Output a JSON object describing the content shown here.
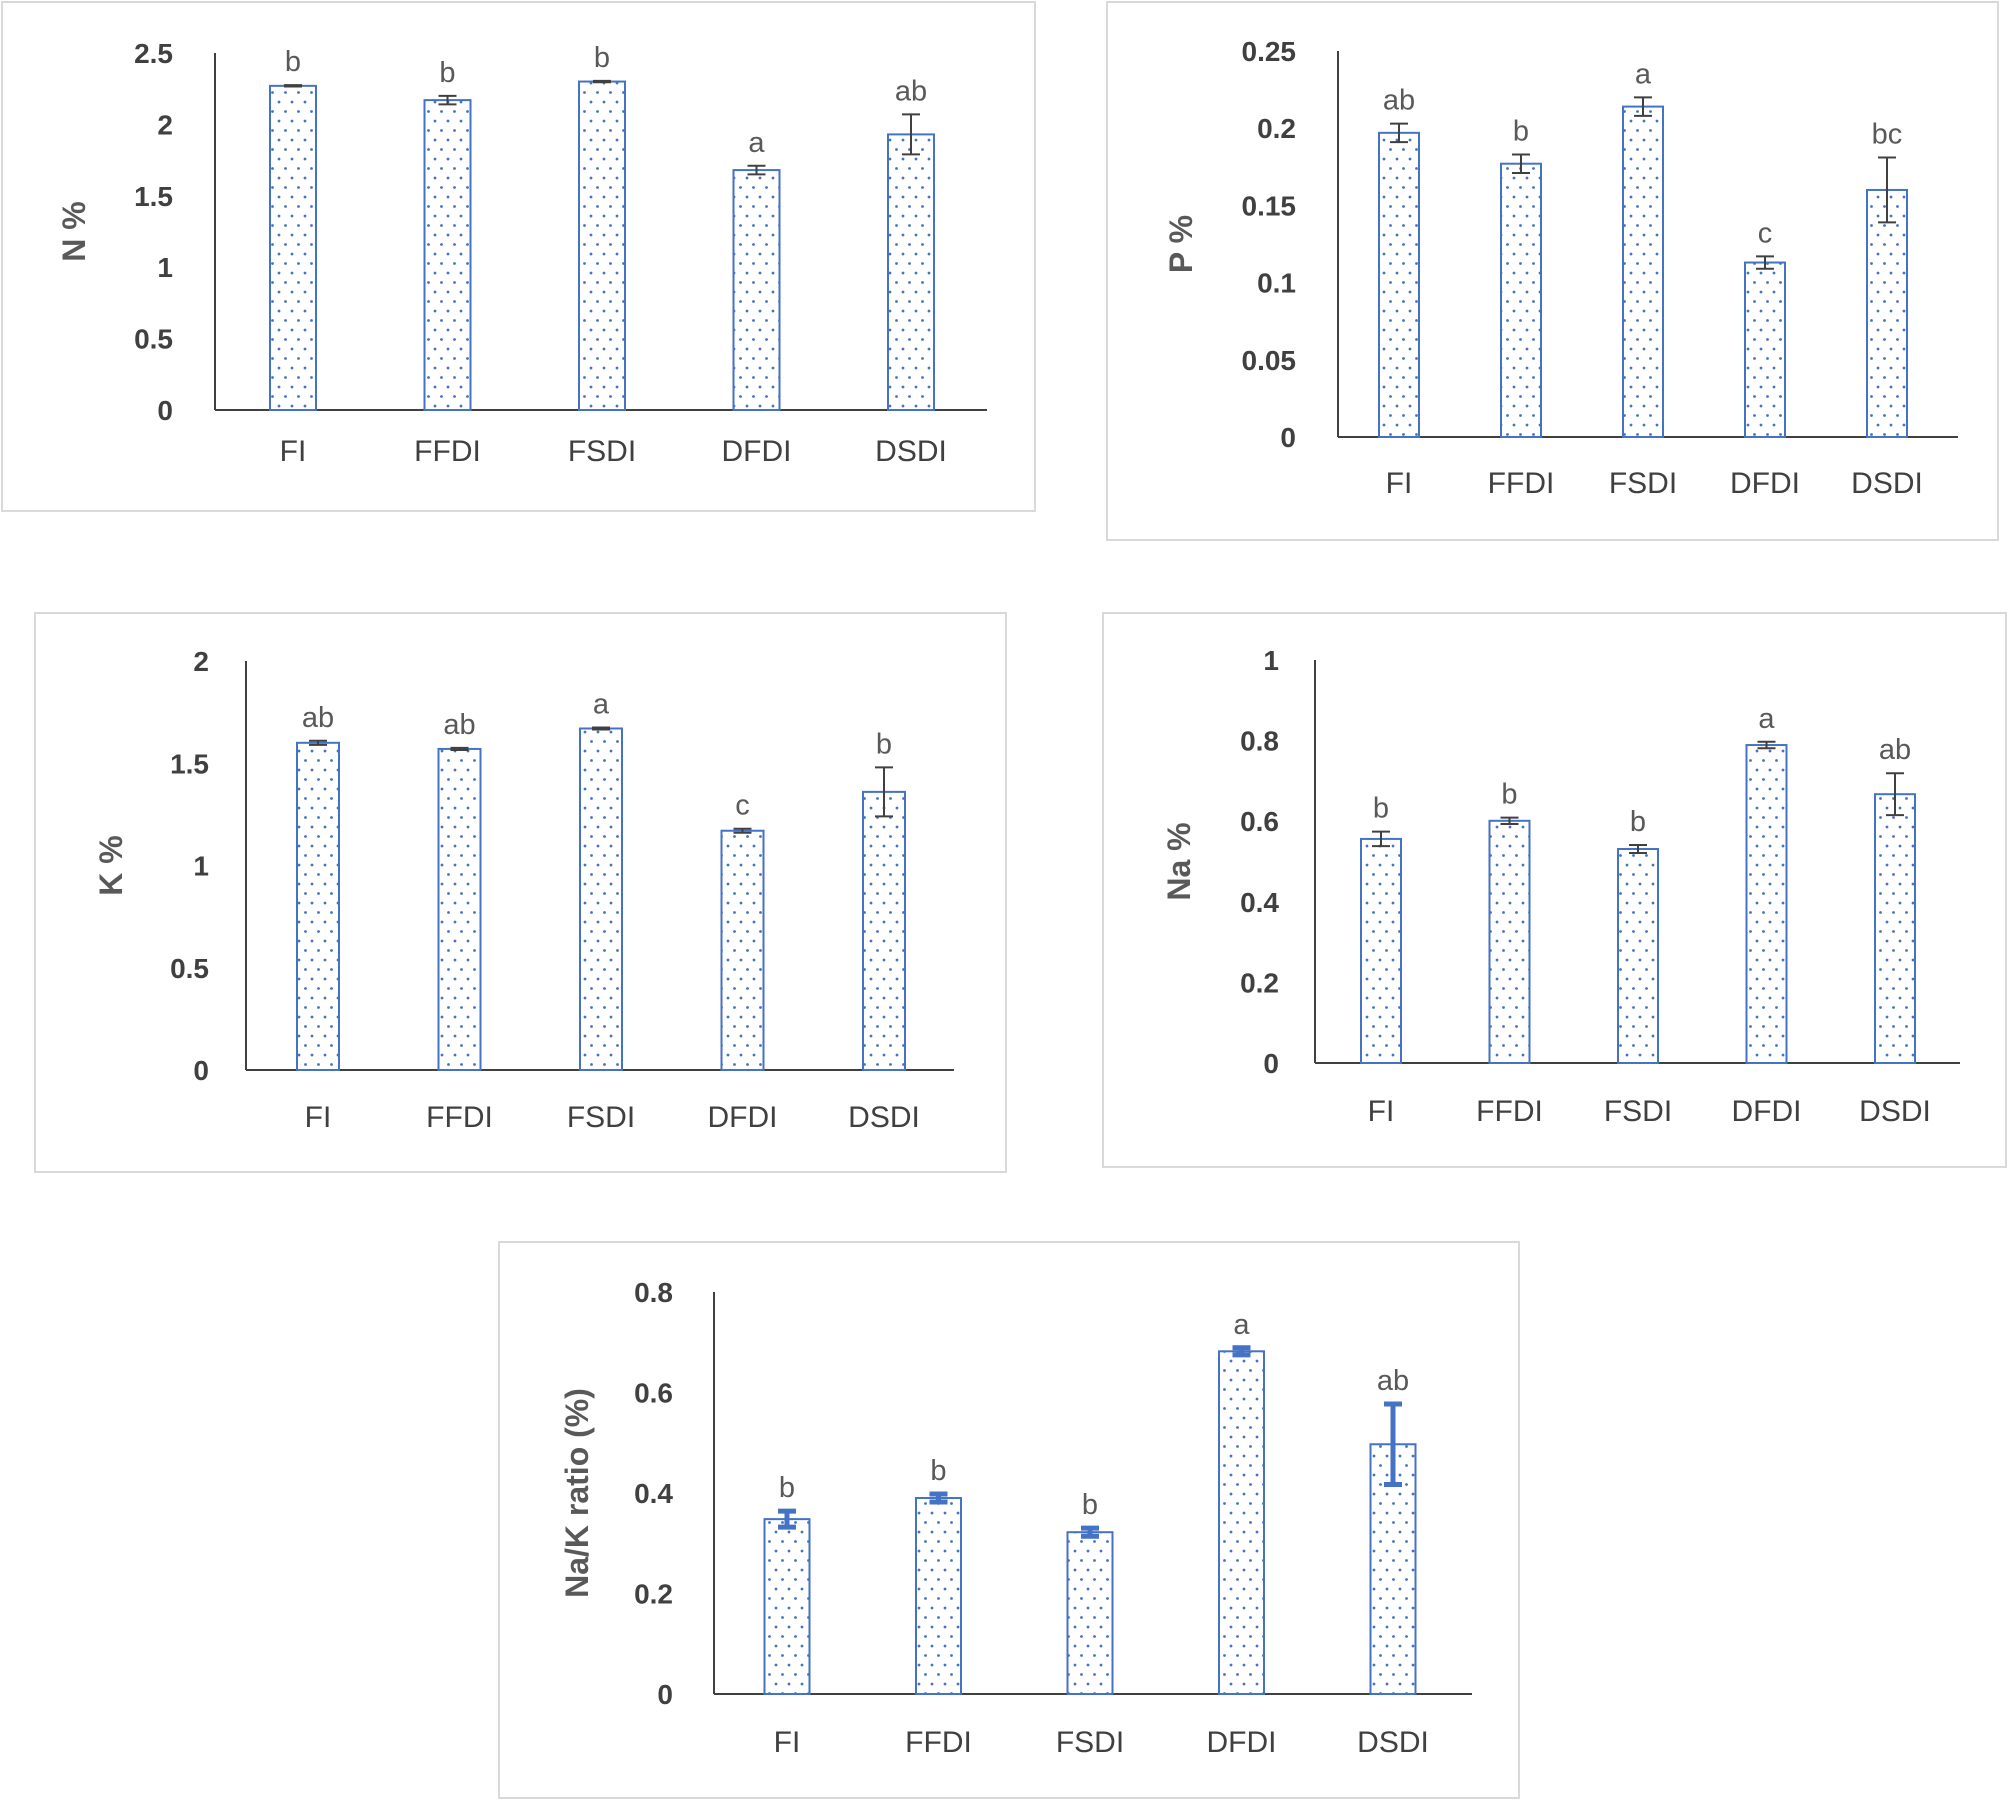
{
  "colors": {
    "bar_stroke": "#4472c4",
    "bar_fill": "#ffffff",
    "dots": "#4472c4",
    "axis": "#404040",
    "text": "#404040",
    "errbar": "#404040"
  },
  "chart_data": [
    {
      "id": "n",
      "type": "bar",
      "ylabel": "N %",
      "categories": [
        "FI",
        "FFDI",
        "FSDI",
        "DFDI",
        "DSDI"
      ],
      "values": [
        2.27,
        2.17,
        2.3,
        1.68,
        1.93
      ],
      "errors": [
        0.005,
        0.03,
        0.005,
        0.03,
        0.14
      ],
      "letters": [
        "b",
        "b",
        "b",
        "a",
        "ab"
      ],
      "ylim": [
        0,
        2.5
      ],
      "yticks": [
        0,
        0.5,
        1,
        1.5,
        2,
        2.5
      ],
      "ytick_labels": [
        "0",
        "0.5",
        "1",
        "1.5",
        "2",
        "2.5"
      ]
    },
    {
      "id": "p",
      "type": "bar",
      "ylabel": "P %",
      "categories": [
        "FI",
        "FFDI",
        "FSDI",
        "DFDI",
        "DSDI"
      ],
      "values": [
        0.197,
        0.177,
        0.214,
        0.113,
        0.16
      ],
      "errors": [
        0.006,
        0.006,
        0.006,
        0.004,
        0.021
      ],
      "letters": [
        "ab",
        "b",
        "a",
        "c",
        "bc"
      ],
      "ylim": [
        0,
        0.25
      ],
      "yticks": [
        0,
        0.05,
        0.1,
        0.15,
        0.2,
        0.25
      ],
      "ytick_labels": [
        "0",
        "0.05",
        "0.1",
        "0.15",
        "0.2",
        "0.25"
      ]
    },
    {
      "id": "k",
      "type": "bar",
      "ylabel": "K %",
      "categories": [
        "FI",
        "FFDI",
        "FSDI",
        "DFDI",
        "DSDI"
      ],
      "values": [
        1.6,
        1.57,
        1.67,
        1.17,
        1.36
      ],
      "errors": [
        0.01,
        0.005,
        0.005,
        0.01,
        0.12
      ],
      "letters": [
        "ab",
        "ab",
        "a",
        "c",
        "b"
      ],
      "ylim": [
        0,
        2
      ],
      "yticks": [
        0,
        0.5,
        1,
        1.5,
        2
      ],
      "ytick_labels": [
        "0",
        "0.5",
        "1",
        "1.5",
        "2"
      ]
    },
    {
      "id": "na",
      "type": "bar",
      "ylabel": "Na %",
      "categories": [
        "FI",
        "FFDI",
        "FSDI",
        "DFDI",
        "DSDI"
      ],
      "values": [
        0.556,
        0.601,
        0.531,
        0.789,
        0.667
      ],
      "errors": [
        0.018,
        0.008,
        0.01,
        0.008,
        0.052
      ],
      "letters": [
        "b",
        "b",
        "b",
        "a",
        "ab"
      ],
      "ylim": [
        0,
        1
      ],
      "yticks": [
        0,
        0.2,
        0.4,
        0.6,
        0.8,
        1
      ],
      "ytick_labels": [
        "0",
        "0.2",
        "0.4",
        "0.6",
        "0.8",
        "1"
      ]
    },
    {
      "id": "nak",
      "type": "bar",
      "ylabel": "Na/K ratio (%)",
      "categories": [
        "FI",
        "FFDI",
        "FSDI",
        "DFDI",
        "DSDI"
      ],
      "values": [
        0.348,
        0.39,
        0.322,
        0.682,
        0.497
      ],
      "errors": [
        0.016,
        0.008,
        0.008,
        0.007,
        0.08
      ],
      "letters": [
        "b",
        "b",
        "b",
        "a",
        "ab"
      ],
      "ylim": [
        0,
        0.8
      ],
      "yticks": [
        0,
        0.2,
        0.4,
        0.6,
        0.8
      ],
      "ytick_labels": [
        "0",
        "0.2",
        "0.4",
        "0.6",
        "0.8"
      ],
      "thick_error_bars": true
    }
  ]
}
